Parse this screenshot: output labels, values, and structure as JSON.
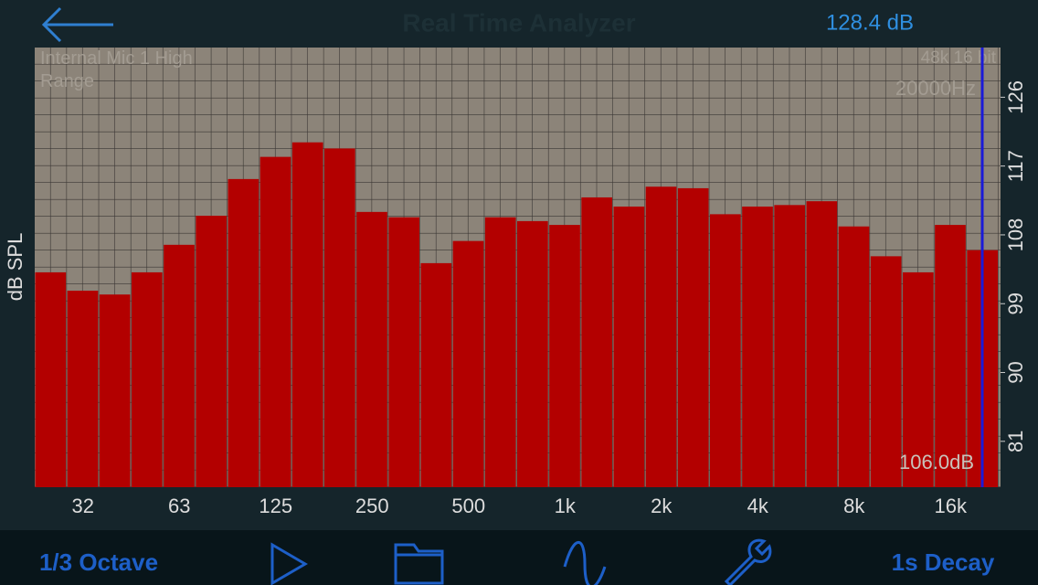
{
  "header": {
    "title": "Real Time Analyzer",
    "level": "128.4 dB"
  },
  "chart_data": {
    "type": "bar",
    "y_label": "dB SPL",
    "input_label": "Internal Mic 1 High Range",
    "format_label": "48k 16 bit",
    "cursor_frequency": "20000Hz",
    "cursor_level": "106.0dB",
    "categories": [
      null,
      "32",
      null,
      null,
      "63",
      null,
      null,
      "125",
      null,
      null,
      "250",
      null,
      null,
      "500",
      null,
      null,
      "1k",
      null,
      null,
      "2k",
      null,
      null,
      "4k",
      null,
      null,
      "8k",
      null,
      null,
      "16k",
      null
    ],
    "values": [
      103.1,
      100.7,
      100.2,
      103.1,
      106.7,
      110.5,
      115.3,
      118.2,
      120.1,
      119.3,
      111.0,
      110.3,
      104.3,
      107.2,
      110.3,
      109.8,
      109.3,
      112.9,
      111.7,
      114.3,
      114.1,
      110.7,
      111.7,
      111.9,
      112.4,
      109.1,
      105.2,
      103.1,
      109.3,
      106.0
    ],
    "color": "#b30000",
    "ylim": [
      75,
      132.5
    ],
    "yticks": [
      81,
      90,
      99,
      108,
      117,
      126
    ],
    "grid": true
  },
  "toolbar": {
    "resolution": "1/3 Octave",
    "decay": "1s Decay"
  }
}
